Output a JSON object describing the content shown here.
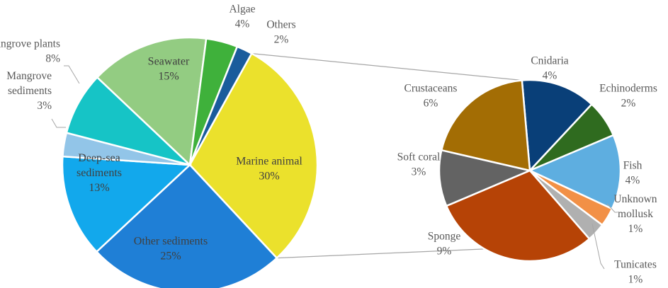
{
  "chart_data": [
    {
      "type": "pie",
      "unit": "%",
      "slices": [
        {
          "name": "Marine animal",
          "line1": "Marine animal",
          "line2": "",
          "pct": "30%",
          "value": 30,
          "color": "#ebe12c"
        },
        {
          "name": "Other sediments",
          "line1": "Other sediments",
          "line2": "",
          "pct": "25%",
          "value": 25,
          "color": "#1f7fd6"
        },
        {
          "name": "Deep-sea sediments",
          "line1": "Deep-sea",
          "line2": "sediments",
          "pct": "13%",
          "value": 13,
          "color": "#12a8ec"
        },
        {
          "name": "Mangrove sediments",
          "line1": "Mangrove",
          "line2": "sediments",
          "pct": "3%",
          "value": 3,
          "color": "#92c5e8"
        },
        {
          "name": "Mangrove plants",
          "line1": "Mangrove plants",
          "line2": "",
          "pct": "8%",
          "value": 8,
          "color": "#16c4c6"
        },
        {
          "name": "Seawater",
          "line1": "Seawater",
          "line2": "",
          "pct": "15%",
          "value": 15,
          "color": "#93cc82"
        },
        {
          "name": "Algae",
          "line1": "Algae",
          "line2": "",
          "pct": "4%",
          "value": 4,
          "color": "#3fb13b"
        },
        {
          "name": "Others",
          "line1": "Others",
          "line2": "",
          "pct": "2%",
          "value": 2,
          "color": "#1a5c9c"
        }
      ]
    },
    {
      "type": "pie",
      "unit": "%",
      "slices": [
        {
          "name": "Cnidaria",
          "line1": "Cnidaria",
          "line2": "",
          "pct": "4%",
          "value": 4,
          "color": "#093f78"
        },
        {
          "name": "Echinoderms",
          "line1": "Echinoderms",
          "line2": "",
          "pct": "2%",
          "value": 2,
          "color": "#2f6b1f"
        },
        {
          "name": "Fish",
          "line1": "Fish",
          "line2": "",
          "pct": "4%",
          "value": 4,
          "color": "#5eaee0"
        },
        {
          "name": "Unknown mollusk",
          "line1": "Unknown",
          "line2": "mollusk",
          "pct": "1%",
          "value": 1,
          "color": "#f29046"
        },
        {
          "name": "Tunicates",
          "line1": "Tunicates",
          "line2": "",
          "pct": "1%",
          "value": 1,
          "color": "#b0b0b0"
        },
        {
          "name": "Sponge",
          "line1": "Sponge",
          "line2": "",
          "pct": "9%",
          "value": 9,
          "color": "#b64306"
        },
        {
          "name": "Soft coral",
          "line1": "Soft coral",
          "line2": "",
          "pct": "3%",
          "value": 3,
          "color": "#636363"
        },
        {
          "name": "Crustaceans",
          "line1": "Crustaceans",
          "line2": "",
          "pct": "6%",
          "value": 6,
          "color": "#a36d04"
        }
      ]
    }
  ]
}
